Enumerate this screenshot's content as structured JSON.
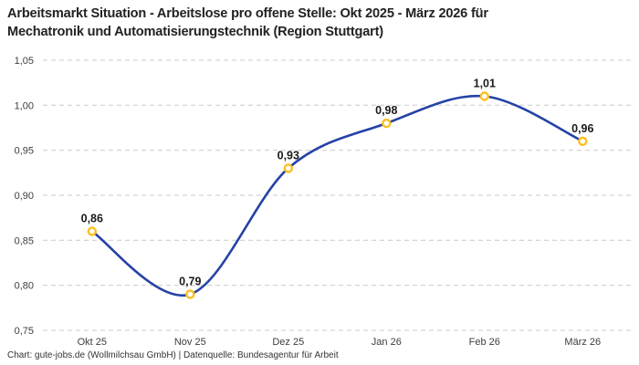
{
  "header": {
    "title_lines": [
      "Arbeitsmarkt Situation - Arbeitslose pro offene Stelle: Okt 2025 - März 2026 für",
      "Mechatronik und Automatisierungstechnik (Region Stuttgart)"
    ]
  },
  "footer": {
    "credit": "Chart: gute-jobs.de (Wollmilchsau GmbH) | Datenquelle: Bundesagentur für Arbeit"
  },
  "colors": {
    "line": "#2642a5",
    "marker_ring": "#fcbf1e",
    "marker_fill": "#ffffff",
    "gridline": "#c9c9c9",
    "title_text": "#222222",
    "tick_text": "#3d3d3d",
    "data_label": "#1a1a1a",
    "footer_text": "#333333",
    "background": "#ffffff"
  },
  "chart_data": {
    "type": "line",
    "title": "Arbeitsmarkt Situation - Arbeitslose pro offene Stelle: Okt 2025 - März 2026 für Mechatronik und Automatisierungstechnik (Region Stuttgart)",
    "categories": [
      "Okt 25",
      "Nov 25",
      "Dez 25",
      "Jan 26",
      "Feb 26",
      "März 26"
    ],
    "values": [
      0.86,
      0.79,
      0.93,
      0.98,
      1.01,
      0.96
    ],
    "value_labels": [
      "0,86",
      "0,79",
      "0,93",
      "0,98",
      "1,01",
      "0,96"
    ],
    "xlabel": "",
    "ylabel": "",
    "ylim": [
      0.75,
      1.05
    ],
    "ytick_step": 0.05,
    "ytick_labels": [
      "0,75",
      "0,80",
      "0,85",
      "0,90",
      "0,95",
      "1,00",
      "1,05"
    ],
    "decimal_separator": ",",
    "grid": "horizontal-dashed",
    "legend": "none",
    "line_style": "smooth"
  }
}
